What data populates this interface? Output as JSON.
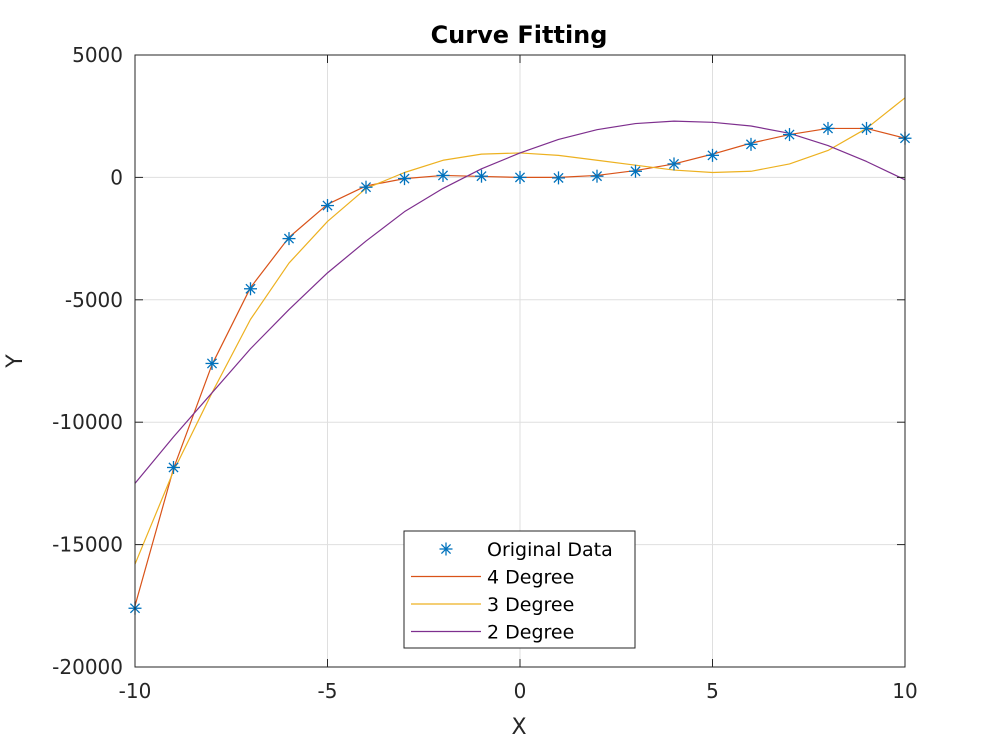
{
  "chart_data": {
    "type": "line",
    "title": "Curve Fitting",
    "xlabel": "X",
    "ylabel": "Y",
    "xlim": [
      -10,
      10
    ],
    "ylim": [
      -20000,
      5000
    ],
    "xticks": [
      -10,
      -5,
      0,
      5,
      10
    ],
    "yticks": [
      -20000,
      -15000,
      -10000,
      -5000,
      0,
      5000
    ],
    "xtick_labels": [
      "-10",
      "-5",
      "0",
      "5",
      "10"
    ],
    "ytick_labels": [
      "-20000",
      "-15000",
      "-10000",
      "-5000",
      "0",
      "5000"
    ],
    "grid": true,
    "legend_position": "bottom-center",
    "x": [
      -10,
      -9,
      -8,
      -7,
      -6,
      -5,
      -4,
      -3,
      -2,
      -1,
      0,
      1,
      2,
      3,
      4,
      5,
      6,
      7,
      8,
      9,
      10
    ],
    "series": [
      {
        "name": "Original Data",
        "style": "markers",
        "marker": "asterisk",
        "color": "#0072BD",
        "values": [
          -17600,
          -11850,
          -7600,
          -4550,
          -2500,
          -1150,
          -400,
          -50,
          80,
          50,
          0,
          -20,
          50,
          250,
          550,
          900,
          1350,
          1750,
          2000,
          2000,
          1600
        ]
      },
      {
        "name": "4 Degree",
        "style": "line",
        "color": "#D95319",
        "values": [
          -17500,
          -11900,
          -7650,
          -4500,
          -2450,
          -1100,
          -350,
          -50,
          80,
          40,
          0,
          0,
          80,
          280,
          550,
          950,
          1400,
          1750,
          2000,
          2000,
          1600
        ]
      },
      {
        "name": "3 Degree",
        "style": "line",
        "color": "#EDB120",
        "values": [
          -15800,
          -12000,
          -8800,
          -5800,
          -3500,
          -1800,
          -450,
          200,
          700,
          950,
          1000,
          900,
          700,
          500,
          300,
          200,
          250,
          550,
          1100,
          2000,
          3250
        ]
      },
      {
        "name": "2 Degree",
        "style": "line",
        "color": "#7E2F8E",
        "values": [
          -12500,
          -10600,
          -8800,
          -7000,
          -5400,
          -3900,
          -2600,
          -1400,
          -450,
          350,
          1000,
          1550,
          1950,
          2200,
          2300,
          2250,
          2100,
          1800,
          1300,
          650,
          -100
        ]
      }
    ]
  }
}
